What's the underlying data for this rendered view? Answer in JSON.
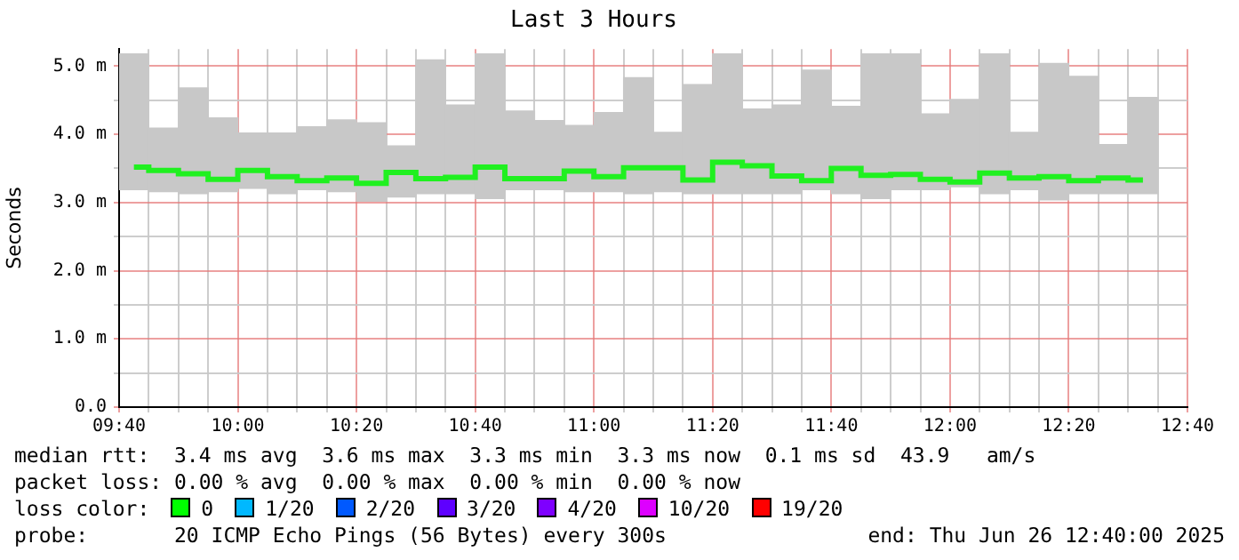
{
  "chart_data": {
    "type": "bar",
    "title": "Last 3 Hours",
    "ylabel": "Seconds",
    "x": [
      9.7083,
      9.7917,
      9.875,
      9.9583,
      10.0417,
      10.125,
      10.2083,
      10.2917,
      10.375,
      10.4583,
      10.5417,
      10.625,
      10.7083,
      10.7917,
      10.875,
      10.9583,
      11.0417,
      11.125,
      11.2083,
      11.2917,
      11.375,
      11.4583,
      11.5417,
      11.625,
      11.7083,
      11.7917,
      11.875,
      11.9583,
      12.0417,
      12.125,
      12.2083,
      12.2917,
      12.375,
      12.4583,
      12.5417
    ],
    "series": [
      {
        "color": "#c8c8c8",
        "base": [
          3.19,
          3.16,
          3.13,
          3.16,
          3.21,
          3.13,
          3.19,
          3.16,
          3.02,
          3.08,
          3.13,
          3.13,
          3.06,
          3.19,
          3.19,
          3.16,
          3.16,
          3.13,
          3.16,
          3.13,
          3.13,
          3.13,
          3.13,
          3.19,
          3.13,
          3.06,
          3.19,
          3.19,
          3.23,
          3.13,
          3.19,
          3.04,
          3.13,
          3.13,
          3.13
        ],
        "values": [
          1.99,
          0.93,
          1.55,
          1.08,
          0.81,
          0.89,
          0.92,
          1.05,
          1.15,
          0.75,
          1.96,
          1.3,
          2.12,
          1.15,
          1.01,
          0.97,
          1.16,
          1.7,
          0.87,
          1.6,
          2.05,
          1.24,
          1.3,
          1.75,
          1.28,
          2.12,
          1.99,
          1.11,
          1.28,
          2.05,
          0.84,
          2.0,
          1.72,
          0.72,
          1.41
        ]
      },
      {
        "type": "step",
        "color": "#20f020",
        "values": [
          3.52,
          3.47,
          3.42,
          3.34,
          3.47,
          3.38,
          3.32,
          3.36,
          3.28,
          3.44,
          3.35,
          3.37,
          3.52,
          3.35,
          3.35,
          3.46,
          3.38,
          3.51,
          3.51,
          3.33,
          3.59,
          3.54,
          3.39,
          3.32,
          3.5,
          3.4,
          3.41,
          3.34,
          3.3,
          3.43,
          3.36,
          3.38,
          3.32,
          3.36,
          3.33
        ]
      }
    ],
    "xlim": [
      9.6667,
      12.6667
    ],
    "xticks": [
      {
        "value": 9.6667,
        "label": "09:40"
      },
      {
        "value": 9.75,
        "label": null
      },
      {
        "value": 9.8333,
        "label": null
      },
      {
        "value": 9.9167,
        "label": null
      },
      {
        "value": 10,
        "label": "10:00"
      },
      {
        "value": 10.0833,
        "label": null
      },
      {
        "value": 10.1667,
        "label": null
      },
      {
        "value": 10.25,
        "label": null
      },
      {
        "value": 10.3333,
        "label": "10:20"
      },
      {
        "value": 10.4167,
        "label": null
      },
      {
        "value": 10.5,
        "label": null
      },
      {
        "value": 10.5833,
        "label": null
      },
      {
        "value": 10.6667,
        "label": "10:40"
      },
      {
        "value": 10.75,
        "label": null
      },
      {
        "value": 10.8333,
        "label": null
      },
      {
        "value": 10.9167,
        "label": null
      },
      {
        "value": 11,
        "label": "11:00"
      },
      {
        "value": 11.0833,
        "label": null
      },
      {
        "value": 11.1667,
        "label": null
      },
      {
        "value": 11.25,
        "label": null
      },
      {
        "value": 11.3333,
        "label": "11:20"
      },
      {
        "value": 11.4167,
        "label": null
      },
      {
        "value": 11.5,
        "label": null
      },
      {
        "value": 11.5833,
        "label": null
      },
      {
        "value": 11.6667,
        "label": "11:40"
      },
      {
        "value": 11.75,
        "label": null
      },
      {
        "value": 11.8333,
        "label": null
      },
      {
        "value": 11.9167,
        "label": null
      },
      {
        "value": 12,
        "label": "12:00"
      },
      {
        "value": 12.0833,
        "label": null
      },
      {
        "value": 12.1667,
        "label": null
      },
      {
        "value": 12.25,
        "label": null
      },
      {
        "value": 12.3333,
        "label": "12:20"
      },
      {
        "value": 12.4167,
        "label": null
      },
      {
        "value": 12.5,
        "label": null
      },
      {
        "value": 12.5833,
        "label": null
      },
      {
        "value": 12.6667,
        "label": "12:40"
      }
    ],
    "ylim": [
      0,
      5.25
    ],
    "yticks": [
      {
        "value": 0,
        "label": "0.0"
      },
      {
        "value": 0.5,
        "label": null
      },
      {
        "value": 1,
        "label": "1.0 m"
      },
      {
        "value": 1.5,
        "label": null
      },
      {
        "value": 2,
        "label": "2.0 m"
      },
      {
        "value": 2.5,
        "label": null
      },
      {
        "value": 3,
        "label": "3.0 m"
      },
      {
        "value": 3.5,
        "label": null
      },
      {
        "value": 4,
        "label": "4.0 m"
      },
      {
        "value": 4.5,
        "label": null
      },
      {
        "value": 5,
        "label": "5.0 m"
      }
    ],
    "grid": true,
    "legend": false,
    "annotations": [
      "median rtt:  3.4 ms avg  3.6 ms max  3.3 ms min  3.3 ms now  0.1 ms sd  43.9   am/s",
      "packet loss: 0.00 % avg  0.00 % max  0.00 % min  0.00 % now",
      "loss color:",
      "0",
      "1/20",
      "2/20",
      "3/20",
      "4/20",
      "10/20",
      "19/20",
      "probe:       20 ICMP Echo Pings (56 Bytes) every 300s",
      "end: Thu Jun 26 12:40:00 2025"
    ]
  }
}
